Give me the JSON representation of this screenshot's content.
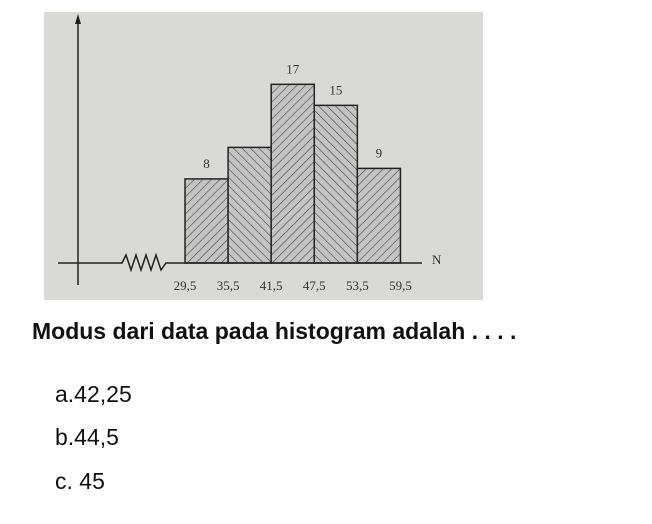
{
  "chart_data": {
    "type": "histogram",
    "bins": [
      29.5,
      35.5,
      41.5,
      47.5,
      53.5,
      59.5
    ],
    "values": [
      8,
      11,
      17,
      15,
      9
    ],
    "value_labels": [
      "8",
      null,
      "17",
      "15",
      "9"
    ],
    "xlabel": "N",
    "xlim": [
      29.5,
      62.5
    ],
    "ylim": [
      0,
      23.5
    ],
    "xticks": [
      {
        "value": 29.5,
        "label": "29,5"
      },
      {
        "value": 35.5,
        "label": "35,5"
      },
      {
        "value": 41.5,
        "label": "41,5"
      },
      {
        "value": 47.5,
        "label": "47,5"
      },
      {
        "value": 53.5,
        "label": "53,5"
      },
      {
        "value": 59.5,
        "label": "59,5"
      }
    ],
    "color": "#c4c4c4"
  },
  "question": "Modus dari data pada histogram adalah . . . .",
  "options": [
    "a.42,25",
    "b.44,5",
    "c. 45"
  ]
}
